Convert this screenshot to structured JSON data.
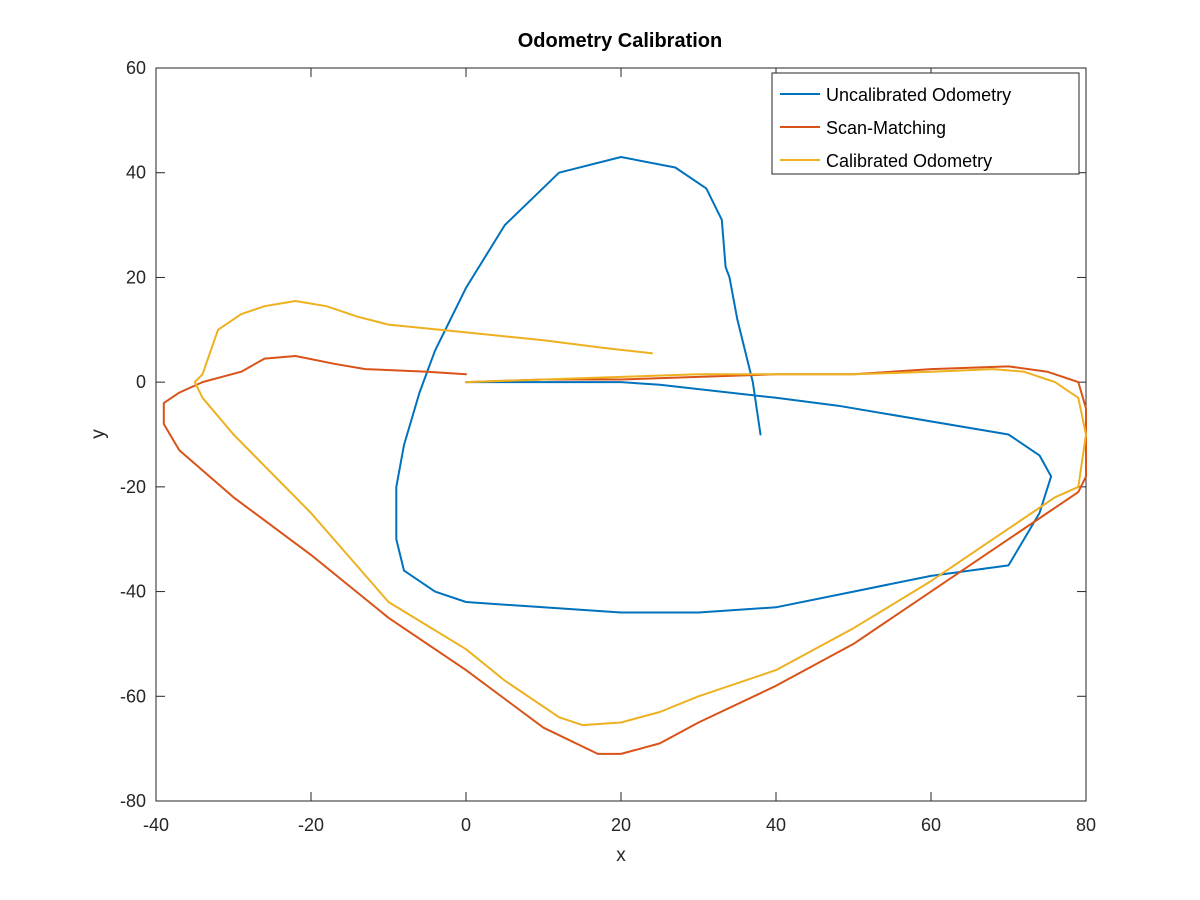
{
  "chart_data": {
    "type": "line",
    "title": "Odometry Calibration",
    "xlabel": "x",
    "ylabel": "y",
    "xlim": [
      -40,
      80
    ],
    "ylim": [
      -80,
      60
    ],
    "xticks": [
      -40,
      -20,
      0,
      20,
      40,
      60,
      80
    ],
    "yticks": [
      -80,
      -60,
      -40,
      -20,
      0,
      20,
      40,
      60
    ],
    "xtick_labels": [
      "-40",
      "-20",
      "0",
      "20",
      "40",
      "60",
      "80"
    ],
    "ytick_labels": [
      "-80",
      "-60",
      "-40",
      "-20",
      "0",
      "20",
      "40",
      "60"
    ],
    "grid": false,
    "legend_position": "top-right",
    "series": [
      {
        "name": "Uncalibrated Odometry",
        "color": "#0072bd",
        "x": [
          0,
          20,
          25,
          40,
          48,
          70,
          74,
          75.5,
          74,
          72,
          70,
          60,
          50,
          40,
          30,
          20,
          10,
          0,
          -4,
          -8,
          -9,
          -9,
          -8,
          -6,
          -4,
          0,
          5,
          12,
          20,
          27,
          31,
          33,
          33.5,
          34,
          35,
          37,
          38
        ],
        "y": [
          0,
          0,
          -0.5,
          -3,
          -4.5,
          -10,
          -14,
          -18,
          -25,
          -30,
          -35,
          -37,
          -40,
          -43,
          -44,
          -44,
          -43,
          -42,
          -40,
          -36,
          -30,
          -20,
          -12,
          -2,
          6,
          18,
          30,
          40,
          43,
          41,
          37,
          31,
          22,
          20,
          12,
          0,
          -10
        ]
      },
      {
        "name": "Scan-Matching",
        "color": "#d95319",
        "x": [
          0,
          10,
          20,
          30,
          40,
          50,
          60,
          70,
          75,
          79,
          80,
          80,
          80,
          79,
          75,
          70,
          60,
          50,
          40,
          30,
          25,
          20,
          17,
          10,
          0,
          -10,
          -20,
          -30,
          -37,
          -39,
          -39,
          -37,
          -34,
          -29,
          -26,
          -22,
          -17,
          -13,
          -5,
          0
        ],
        "y": [
          0,
          0.5,
          0.5,
          1,
          1.5,
          1.5,
          2.5,
          3,
          2,
          0,
          -5,
          -10,
          -18,
          -21,
          -25,
          -30,
          -40,
          -50,
          -58,
          -65,
          -69,
          -71,
          -71,
          -66,
          -55,
          -45,
          -33,
          -22,
          -13,
          -8,
          -4,
          -2,
          0,
          2,
          4.5,
          5,
          3.5,
          2.5,
          2,
          1.5
        ]
      },
      {
        "name": "Calibrated Odometry",
        "color": "#edb120",
        "x": [
          0,
          10,
          20,
          30,
          40,
          50,
          60,
          68,
          72,
          76,
          79,
          80,
          79,
          76,
          70,
          60,
          50,
          40,
          30,
          25,
          20,
          15,
          12,
          5,
          0,
          -10,
          -20,
          -30,
          -34,
          -35,
          -34,
          -32,
          -29,
          -26,
          -22,
          -18,
          -14,
          -10,
          0,
          10,
          18,
          24
        ],
        "y": [
          0,
          0.5,
          1,
          1.5,
          1.5,
          1.5,
          2,
          2.5,
          2,
          0,
          -3,
          -10,
          -20,
          -22,
          -28,
          -38,
          -47,
          -55,
          -60,
          -63,
          -65,
          -65.5,
          -64,
          -57,
          -51,
          -42,
          -25,
          -10,
          -3,
          0,
          1.5,
          10,
          13,
          14.5,
          15.5,
          14.5,
          12.5,
          11,
          9.5,
          8,
          6.5,
          5.5
        ]
      }
    ]
  }
}
